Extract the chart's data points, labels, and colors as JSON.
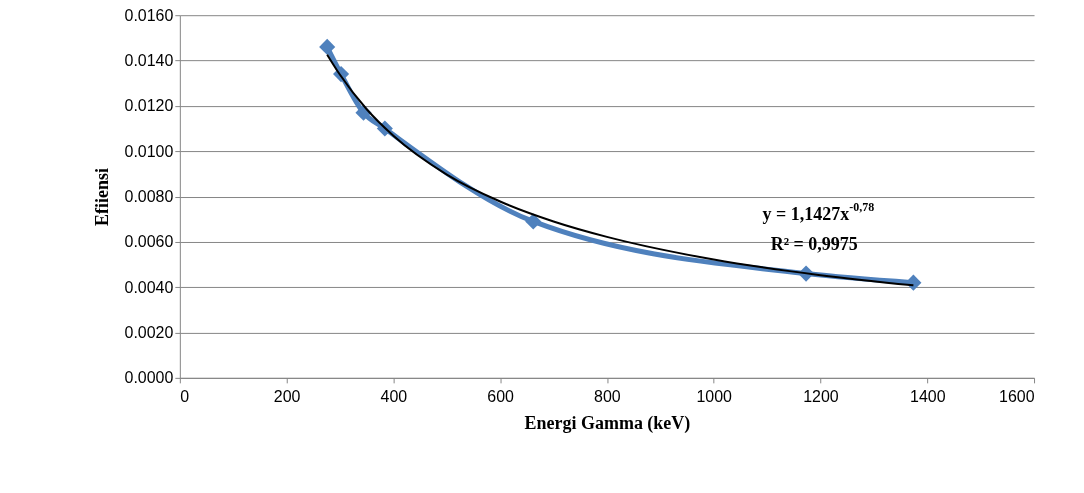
{
  "chart_data": {
    "type": "line",
    "xlabel": "Energi Gamma (keV)",
    "ylabel": "Efiiensi",
    "series": [
      {
        "color": "#4f81bd",
        "marker": "diamond",
        "x": [
          276,
          302,
          344,
          384,
          662,
          1173,
          1374
        ],
        "values": [
          0.0146,
          0.0134,
          0.0117,
          0.011,
          0.0069,
          0.0046,
          0.0042
        ]
      },
      {
        "color": "#000000",
        "marker": "none",
        "x": [
          276,
          300,
          350,
          400,
          500,
          600,
          700,
          800,
          1000,
          1200,
          1374
        ],
        "values": [
          0.01426,
          0.01337,
          0.01185,
          0.01068,
          0.00897,
          0.00778,
          0.0069,
          0.00622,
          0.00522,
          0.00453,
          0.00408
        ]
      }
    ],
    "xlim": [
      0,
      1600
    ],
    "xticks": [
      0,
      200,
      400,
      600,
      800,
      1000,
      1200,
      1400,
      1600
    ],
    "ylim": [
      0,
      0.016
    ],
    "yticks": [
      {
        "value": 0,
        "label": "0.0000"
      },
      {
        "value": 0.002,
        "label": "0.0020"
      },
      {
        "value": 0.004,
        "label": "0.0040"
      },
      {
        "value": 0.006,
        "label": "0.0060"
      },
      {
        "value": 0.008,
        "label": "0.0080"
      },
      {
        "value": 0.01,
        "label": "0.0100"
      },
      {
        "value": 0.012,
        "label": "0.0120"
      },
      {
        "value": 0.014,
        "label": "0.0140"
      },
      {
        "value": 0.016,
        "label": "0.0160"
      }
    ],
    "grid": "y",
    "line_style": "solid",
    "annotations": [
      "y = 1,1427x$^{-0,78}$",
      "R² = 0,9975"
    ]
  }
}
